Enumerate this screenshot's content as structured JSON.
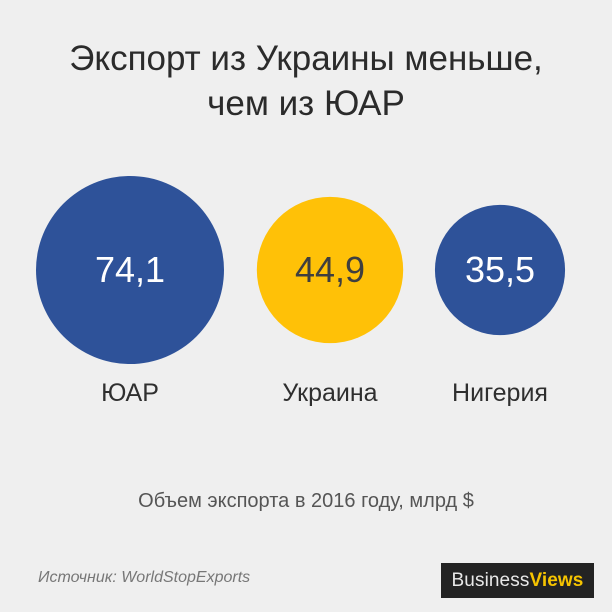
{
  "header": {
    "title_line1": "Экспорт из Украины меньше,",
    "title_line2": "чем из ЮАР"
  },
  "chart_data": {
    "type": "bubble",
    "subtitle": "Объем экспорта в 2016 году, млрд $",
    "items": [
      {
        "label": "ЮАР",
        "value": 74.1,
        "display": "74,1",
        "color": "#2e5299",
        "value_color": "#ffffff"
      },
      {
        "label": "Украина",
        "value": 44.9,
        "display": "44,9",
        "color": "#ffc107",
        "value_color": "#3f3f3f"
      },
      {
        "label": "Нигерия",
        "value": 35.5,
        "display": "35,5",
        "color": "#2e5299",
        "value_color": "#ffffff"
      }
    ]
  },
  "footer": {
    "source": "Источник: WorldStopExports",
    "brand_business": "Business",
    "brand_views": "Views"
  }
}
